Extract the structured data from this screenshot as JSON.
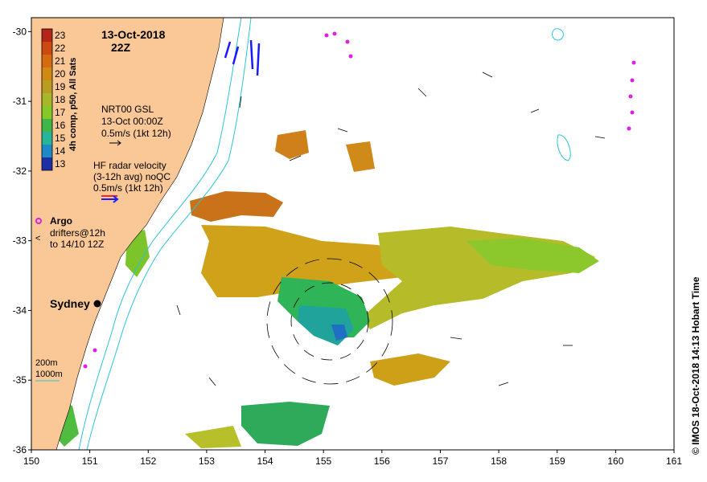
{
  "header": {
    "date": "13-Oct-2018",
    "time": "22Z"
  },
  "colorbar": {
    "title": "4h comp, p50, All Sats",
    "ticks": [
      "23",
      "22",
      "21",
      "20",
      "19",
      "18",
      "17",
      "16",
      "15",
      "14",
      "13"
    ],
    "colors": [
      "#b5241b",
      "#cc4a12",
      "#d66a10",
      "#cf8a14",
      "#b99c22",
      "#a8b62a",
      "#86c72a",
      "#3fb648",
      "#26b59a",
      "#1f89c7",
      "#1c2fa5"
    ]
  },
  "legend": {
    "gsl": {
      "line1": "NRT00 GSL",
      "line2": "13-Oct 00:00Z",
      "line3": "0.5m/s (1kt 12h)"
    },
    "hf": {
      "line1": "HF radar velocity",
      "line2": "(3-12h avg) noQC",
      "line3": "0.5m/s (1kt 12h)"
    },
    "argo": {
      "label": "Argo",
      "drifters_line1": "drifters@12h",
      "drifters_line2": "to 14/10 12Z"
    },
    "bathy": {
      "line1": "200m",
      "line2": "1000m"
    }
  },
  "city": {
    "name": "Sydney",
    "lon": 151.21,
    "lat": -33.87
  },
  "axes": {
    "x_ticks": [
      "150",
      "151",
      "152",
      "153",
      "154",
      "155",
      "156",
      "157",
      "158",
      "159",
      "160",
      "161"
    ],
    "y_ticks": [
      "-30",
      "-31",
      "-32",
      "-33",
      "-34",
      "-35",
      "-36"
    ],
    "xlim": [
      150,
      161
    ],
    "ylim": [
      -36,
      -29.8
    ]
  },
  "credit": "© IMOS 18-Oct-2018 14:13 Hobart Time",
  "colors": {
    "land": "#f9c896",
    "isobath": "#2bc4d6",
    "argo": "#e020e0",
    "hf_blue": "#1a1aff",
    "hf_red": "#ff2020"
  }
}
